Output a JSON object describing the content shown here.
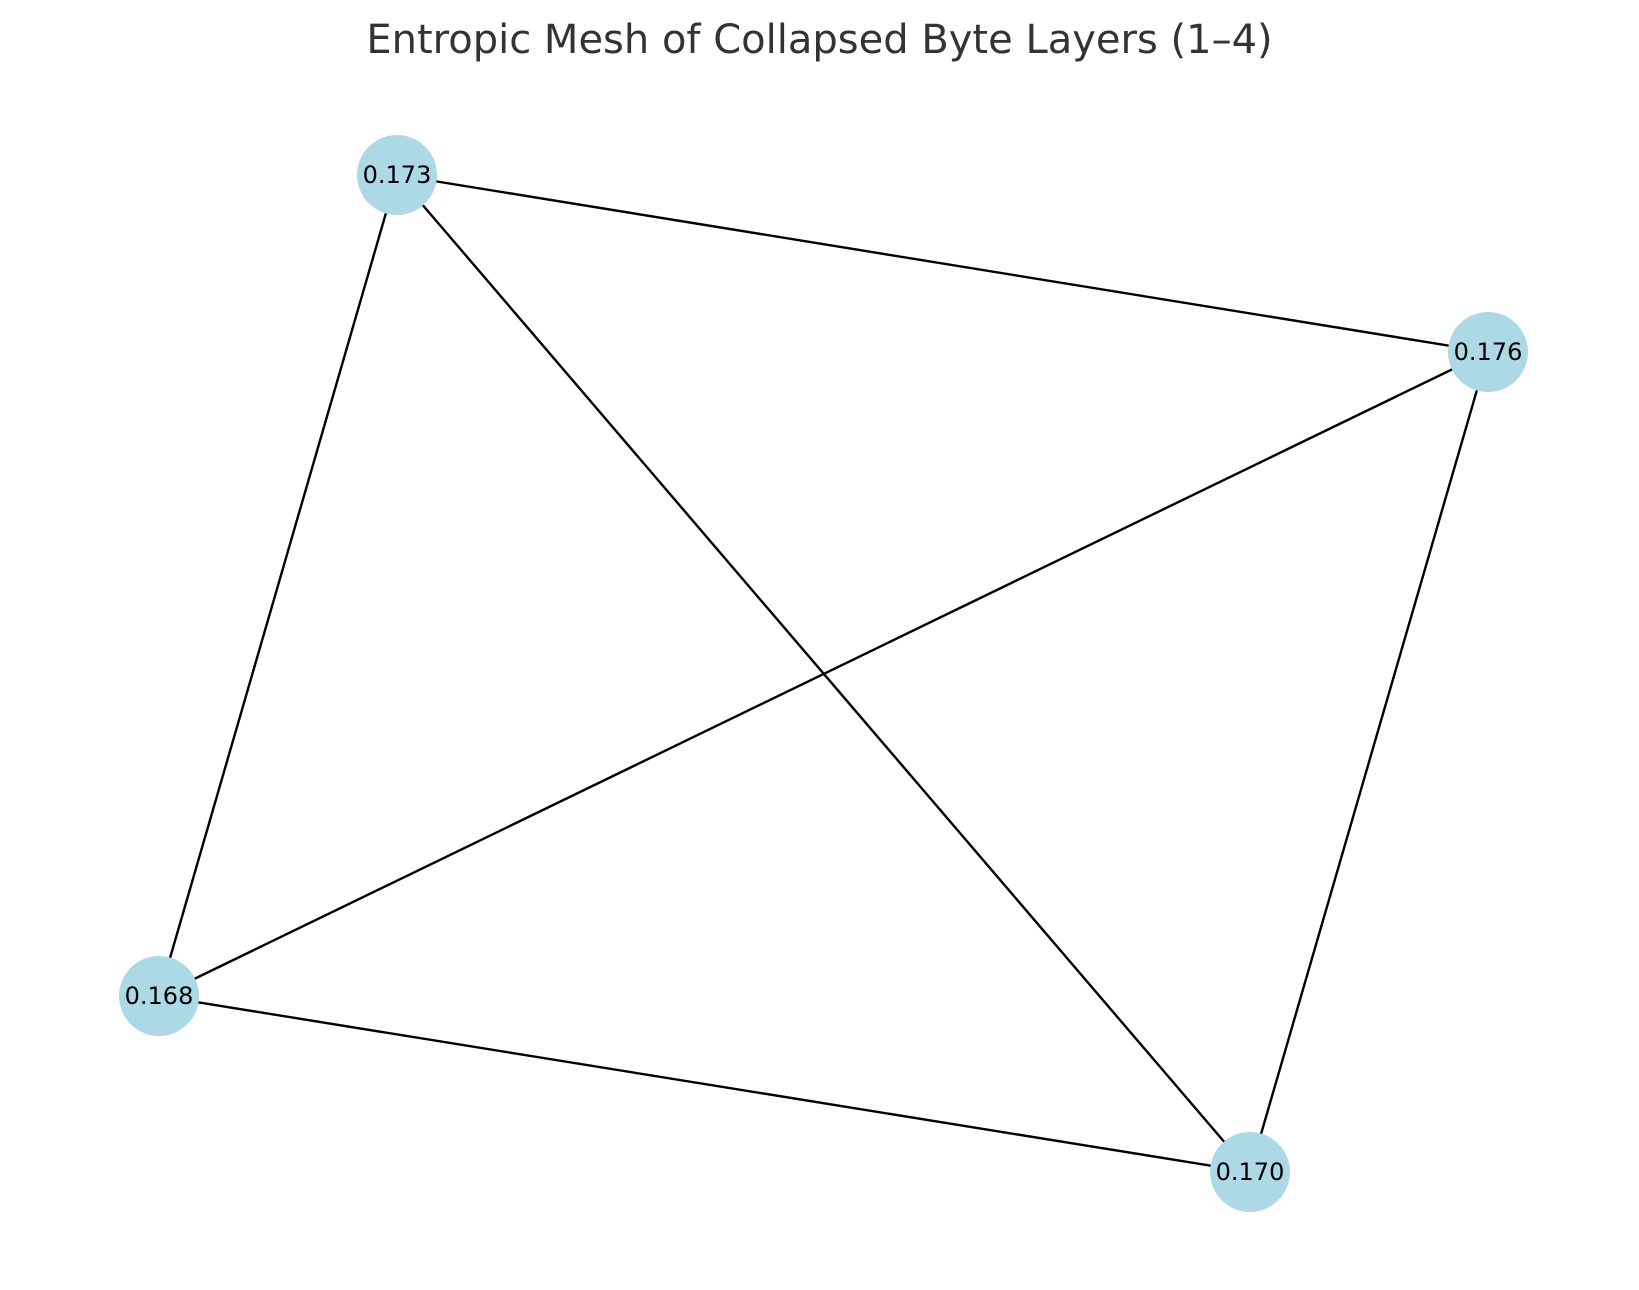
{
  "title": "Entropic Mesh of Collapsed Byte Layers (1–4)",
  "colors": {
    "node_fill": "#add8e6",
    "edge": "#000000",
    "title": "#333333",
    "background": "#ffffff"
  },
  "nodes": [
    {
      "id": "n1",
      "label": "0.173"
    },
    {
      "id": "n2",
      "label": "0.176"
    },
    {
      "id": "n3",
      "label": "0.168"
    },
    {
      "id": "n4",
      "label": "0.170"
    }
  ],
  "edges": [
    {
      "source": "n1",
      "target": "n2"
    },
    {
      "source": "n1",
      "target": "n3"
    },
    {
      "source": "n1",
      "target": "n4"
    },
    {
      "source": "n2",
      "target": "n3"
    },
    {
      "source": "n2",
      "target": "n4"
    },
    {
      "source": "n3",
      "target": "n4"
    }
  ]
}
